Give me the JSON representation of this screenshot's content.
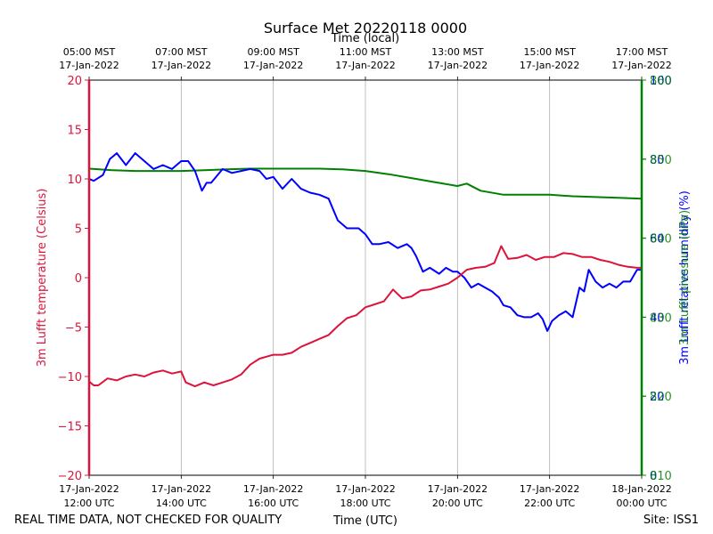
{
  "chart_data": {
    "type": "line",
    "title": "Surface Met 20220118 0000",
    "top_axis_label": "Time (local)",
    "top_ticks": [
      [
        "05:00 MST",
        "17-Jan-2022"
      ],
      [
        "07:00 MST",
        "17-Jan-2022"
      ],
      [
        "09:00 MST",
        "17-Jan-2022"
      ],
      [
        "11:00 MST",
        "17-Jan-2022"
      ],
      [
        "13:00 MST",
        "17-Jan-2022"
      ],
      [
        "15:00 MST",
        "17-Jan-2022"
      ],
      [
        "17:00 MST",
        "17-Jan-2022"
      ]
    ],
    "xlabel": "Time (UTC)",
    "x_ticks": [
      [
        "17-Jan-2022",
        "12:00 UTC"
      ],
      [
        "17-Jan-2022",
        "14:00 UTC"
      ],
      [
        "17-Jan-2022",
        "16:00 UTC"
      ],
      [
        "17-Jan-2022",
        "18:00 UTC"
      ],
      [
        "17-Jan-2022",
        "20:00 UTC"
      ],
      [
        "17-Jan-2022",
        "22:00 UTC"
      ],
      [
        "18-Jan-2022",
        "00:00 UTC"
      ]
    ],
    "xlim": [
      12,
      24
    ],
    "grid": "vertical",
    "left_axis": {
      "label": "3m Lufft temperature (Celsius)",
      "color": "#dc143c",
      "ylim": [
        -20,
        20
      ],
      "ticks": [
        -20,
        -15,
        -10,
        -5,
        0,
        5,
        10,
        15,
        20
      ],
      "tick_labels": [
        "−20",
        "−15",
        "−10",
        "−5",
        "0",
        "5",
        "10",
        "15",
        "20"
      ]
    },
    "right_axes": [
      {
        "label": "3m Lufft relative humidity (%)",
        "color": "#0000ff",
        "ylim": [
          0,
          100
        ],
        "ticks": [
          0,
          20,
          40,
          60,
          80,
          100
        ],
        "tick_labels": [
          "0",
          "20",
          "40",
          "60",
          "80",
          "100"
        ]
      },
      {
        "label": "3m Lufft pressure (hPa)",
        "color": "#008000",
        "ylim": [
          810,
          860
        ],
        "ticks": [
          810,
          820,
          830,
          840,
          850,
          860
        ],
        "tick_labels": [
          "810",
          "820",
          "830",
          "840",
          "850",
          "860"
        ]
      }
    ],
    "series": [
      {
        "name": "3m Lufft temperature (Celsius)",
        "color": "#dc143c",
        "axis": "left",
        "x": [
          12.0,
          12.1,
          12.2,
          12.4,
          12.6,
          12.8,
          13.0,
          13.2,
          13.4,
          13.6,
          13.8,
          14.0,
          14.1,
          14.3,
          14.5,
          14.7,
          14.9,
          15.1,
          15.3,
          15.5,
          15.7,
          16.0,
          16.2,
          16.4,
          16.6,
          16.8,
          17.0,
          17.2,
          17.4,
          17.6,
          17.8,
          18.0,
          18.2,
          18.4,
          18.6,
          18.8,
          19.0,
          19.2,
          19.4,
          19.6,
          19.8,
          20.0,
          20.2,
          20.4,
          20.6,
          20.8,
          20.95,
          21.1,
          21.3,
          21.5,
          21.7,
          21.9,
          22.1,
          22.3,
          22.5,
          22.7,
          22.9,
          23.1,
          23.3,
          23.5,
          23.7,
          23.9,
          24.0
        ],
        "values": [
          -10.5,
          -10.9,
          -10.9,
          -10.2,
          -10.4,
          -10.0,
          -9.8,
          -10.0,
          -9.6,
          -9.4,
          -9.7,
          -9.5,
          -10.6,
          -11.0,
          -10.6,
          -10.9,
          -10.6,
          -10.3,
          -9.8,
          -8.8,
          -8.2,
          -7.8,
          -7.8,
          -7.6,
          -7.0,
          -6.6,
          -6.2,
          -5.8,
          -4.9,
          -4.1,
          -3.8,
          -3.0,
          -2.7,
          -2.4,
          -1.2,
          -2.1,
          -1.9,
          -1.3,
          -1.2,
          -0.9,
          -0.6,
          0.0,
          0.8,
          1.0,
          1.1,
          1.5,
          3.2,
          1.9,
          2.0,
          2.3,
          1.8,
          2.1,
          2.1,
          2.5,
          2.4,
          2.1,
          2.1,
          1.8,
          1.6,
          1.3,
          1.1,
          1.0,
          1.0
        ]
      },
      {
        "name": "3m Lufft relative humidity (%)",
        "color": "#0000ff",
        "axis": "right-1",
        "x": [
          12.0,
          12.1,
          12.3,
          12.45,
          12.6,
          12.8,
          13.0,
          13.2,
          13.4,
          13.6,
          13.8,
          14.0,
          14.15,
          14.3,
          14.45,
          14.55,
          14.65,
          14.9,
          15.1,
          15.3,
          15.5,
          15.7,
          15.85,
          16.0,
          16.2,
          16.4,
          16.6,
          16.8,
          17.0,
          17.2,
          17.4,
          17.6,
          17.7,
          17.85,
          18.0,
          18.15,
          18.3,
          18.5,
          18.7,
          18.9,
          19.0,
          19.1,
          19.25,
          19.4,
          19.6,
          19.75,
          19.9,
          20.0,
          20.15,
          20.3,
          20.45,
          20.6,
          20.75,
          20.9,
          21.0,
          21.15,
          21.3,
          21.45,
          21.6,
          21.75,
          21.85,
          21.95,
          22.05,
          22.2,
          22.35,
          22.5,
          22.65,
          22.75,
          22.85,
          23.0,
          23.15,
          23.3,
          23.45,
          23.6,
          23.75,
          23.9,
          24.0
        ],
        "values": [
          75,
          74.5,
          76,
          80,
          81.5,
          78.5,
          81.5,
          79.5,
          77.5,
          78.5,
          77.5,
          79.5,
          79.5,
          77,
          72,
          74,
          74,
          77.5,
          76.5,
          77,
          77.5,
          77,
          75,
          75.5,
          72.5,
          75,
          72.5,
          71.5,
          71,
          70,
          64.5,
          62.5,
          62.5,
          62.5,
          61,
          58.5,
          58.5,
          59,
          57.5,
          58.5,
          57.5,
          55.5,
          51.5,
          52.5,
          51,
          52.5,
          51.5,
          51.5,
          50,
          47.5,
          48.5,
          47.5,
          46.5,
          45,
          43,
          42.5,
          40.5,
          40,
          40,
          41,
          39.5,
          36.5,
          39,
          40.5,
          41.5,
          40,
          47.5,
          46.5,
          52,
          49,
          47.5,
          48.5,
          47.5,
          49,
          49,
          52,
          52
        ]
      },
      {
        "name": "3m Lufft pressure (hPa)",
        "color": "#008000",
        "axis": "right-2",
        "x": [
          12.0,
          12.5,
          13.0,
          13.5,
          14.0,
          14.5,
          15.0,
          15.5,
          16.0,
          16.5,
          17.0,
          17.5,
          18.0,
          18.5,
          19.0,
          19.5,
          20.0,
          20.2,
          20.5,
          21.0,
          21.5,
          22.0,
          22.5,
          23.0,
          23.5,
          24.0
        ],
        "values": [
          848.8,
          848.6,
          848.5,
          848.5,
          848.5,
          848.6,
          848.7,
          848.8,
          848.8,
          848.8,
          848.8,
          848.7,
          848.5,
          848.1,
          847.6,
          847.1,
          846.6,
          846.9,
          846.0,
          845.5,
          845.5,
          845.5,
          845.3,
          845.2,
          845.1,
          845.0
        ]
      }
    ],
    "footer_left": "REAL TIME DATA, NOT CHECKED FOR QUALITY",
    "footer_right": "Site: ISS1"
  }
}
